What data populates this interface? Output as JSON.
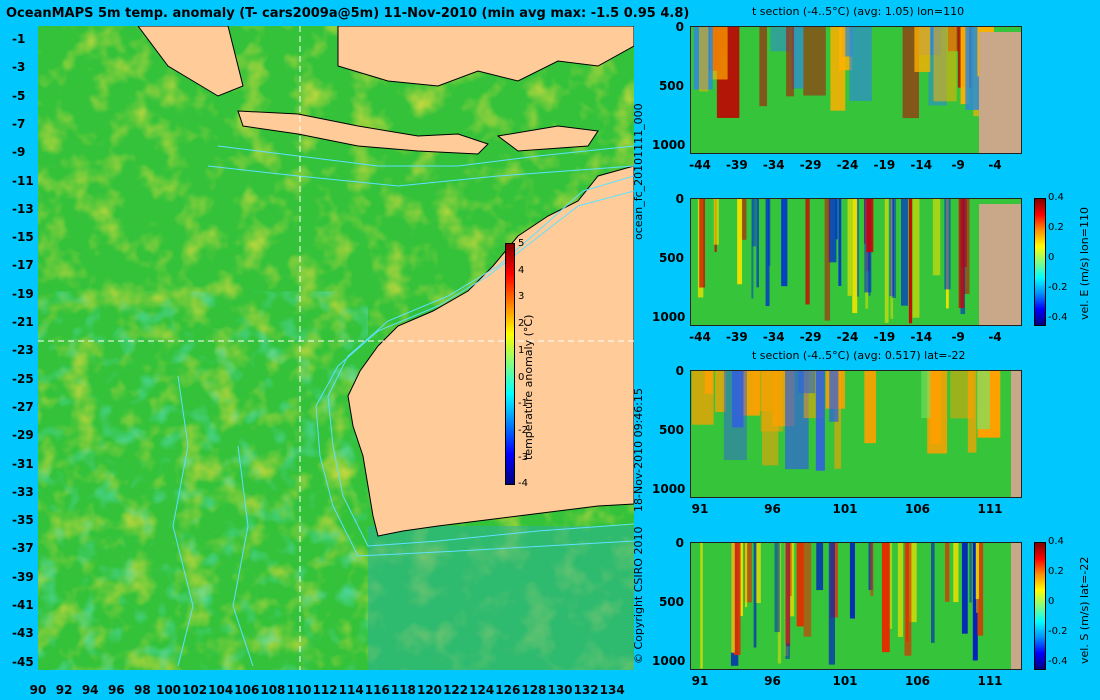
{
  "title": "OceanMAPS 5m temp. anomaly (T- cars2009a@5m) 11-Nov-2010 (min avg max: -1.5 0.95 4.8)",
  "map": {
    "lat_ticks": [
      "-1",
      "-3",
      "-5",
      "-7",
      "-9",
      "-11",
      "-13",
      "-15",
      "-17",
      "-19",
      "-21",
      "-23",
      "-25",
      "-27",
      "-29",
      "-31",
      "-33",
      "-35",
      "-37",
      "-39",
      "-41",
      "-43",
      "-45"
    ],
    "lon_ticks": [
      "90",
      "92",
      "94",
      "96",
      "98",
      "100",
      "102",
      "104",
      "106",
      "108",
      "110",
      "112",
      "114",
      "116",
      "118",
      "120",
      "122",
      "124",
      "126",
      "128",
      "130",
      "132",
      "134"
    ],
    "crosshair": {
      "lon": 110,
      "lat": -22
    },
    "colorbar": {
      "ticks": [
        "5",
        "4",
        "3",
        "2",
        "1",
        "0",
        "-1",
        "-2",
        "-3",
        "-4"
      ],
      "label": "temperature anomaly (°C)"
    },
    "colors": {
      "land": "#ffcc99",
      "ocean": "#2fbf2f",
      "contour": "#5fe0ff"
    }
  },
  "panels": [
    {
      "title": "t section (-4..5°C) (avg: 1.05) lon=110",
      "y_ticks": [
        "0",
        "500",
        "1000"
      ],
      "x_ticks": [
        "-44",
        "-39",
        "-34",
        "-29",
        "-24",
        "-19",
        "-14",
        "-9",
        "-4"
      ],
      "cbar": null
    },
    {
      "title": "",
      "y_ticks": [
        "0",
        "500",
        "1000"
      ],
      "x_ticks": [
        "-44",
        "-39",
        "-34",
        "-29",
        "-24",
        "-19",
        "-14",
        "-9",
        "-4"
      ],
      "cbar": {
        "ticks": [
          "0.4",
          "0.2",
          "0",
          "-0.2",
          "-0.4"
        ],
        "label": "vel. E (m/s) lon=110"
      }
    },
    {
      "title": "t section (-4..5°C) (avg: 0.517) lat=-22",
      "y_ticks": [
        "0",
        "500",
        "1000"
      ],
      "x_ticks": [
        "91",
        "96",
        "101",
        "106",
        "111"
      ],
      "cbar": null
    },
    {
      "title": "",
      "y_ticks": [
        "0",
        "500",
        "1000"
      ],
      "x_ticks": [
        "91",
        "96",
        "101",
        "106",
        "111"
      ],
      "cbar": {
        "ticks": [
          "0.4",
          "0.2",
          "0",
          "-0.2",
          "-0.4"
        ],
        "label": "vel. S (m/s) lat=-22"
      }
    }
  ],
  "side_text": {
    "run_id": "ocean_fc_20101111_000",
    "stamp": "18-Nov-2010 09:46:15",
    "copyright": "© Copyright CSIRO 2010"
  }
}
